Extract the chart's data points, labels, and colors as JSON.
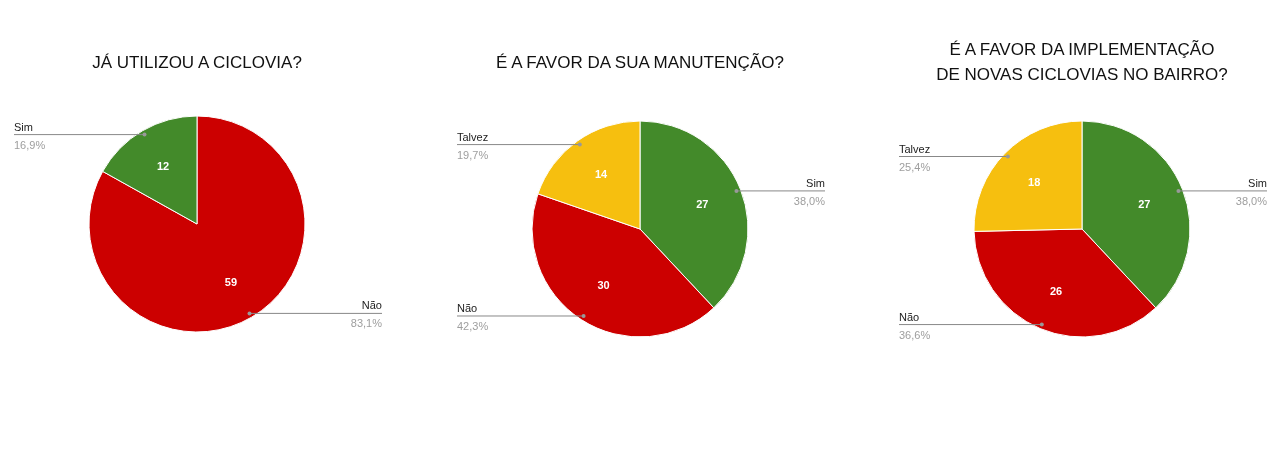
{
  "chart_data": [
    {
      "type": "pie",
      "title": "JÁ UTILIZOU A CICLOVIA?",
      "categories": [
        "Não",
        "Sim"
      ],
      "values": [
        59,
        12
      ],
      "colors": [
        "#cc0000",
        "#438a2a"
      ],
      "data_labels": true,
      "annotations": [
        "83,1%",
        "16,9%"
      ]
    },
    {
      "type": "pie",
      "title": "É A FAVOR DA SUA MANUTENÇÃO?",
      "categories": [
        "Sim",
        "Não",
        "Talvez"
      ],
      "values": [
        27,
        30,
        14
      ],
      "colors": [
        "#438a2a",
        "#cc0000",
        "#f6bf0f"
      ],
      "data_labels": true,
      "annotations": [
        "38,0%",
        "42,3%",
        "19,7%"
      ]
    },
    {
      "type": "pie",
      "title": "É A FAVOR DA IMPLEMENTAÇÃO\nDE NOVAS CICLOVIAS NO BAIRRO?",
      "categories": [
        "Sim",
        "Não",
        "Talvez"
      ],
      "values": [
        27,
        26,
        18
      ],
      "colors": [
        "#438a2a",
        "#cc0000",
        "#f6bf0f"
      ],
      "data_labels": true,
      "annotations": [
        "38,0%",
        "36,6%",
        "25,4%"
      ]
    }
  ]
}
